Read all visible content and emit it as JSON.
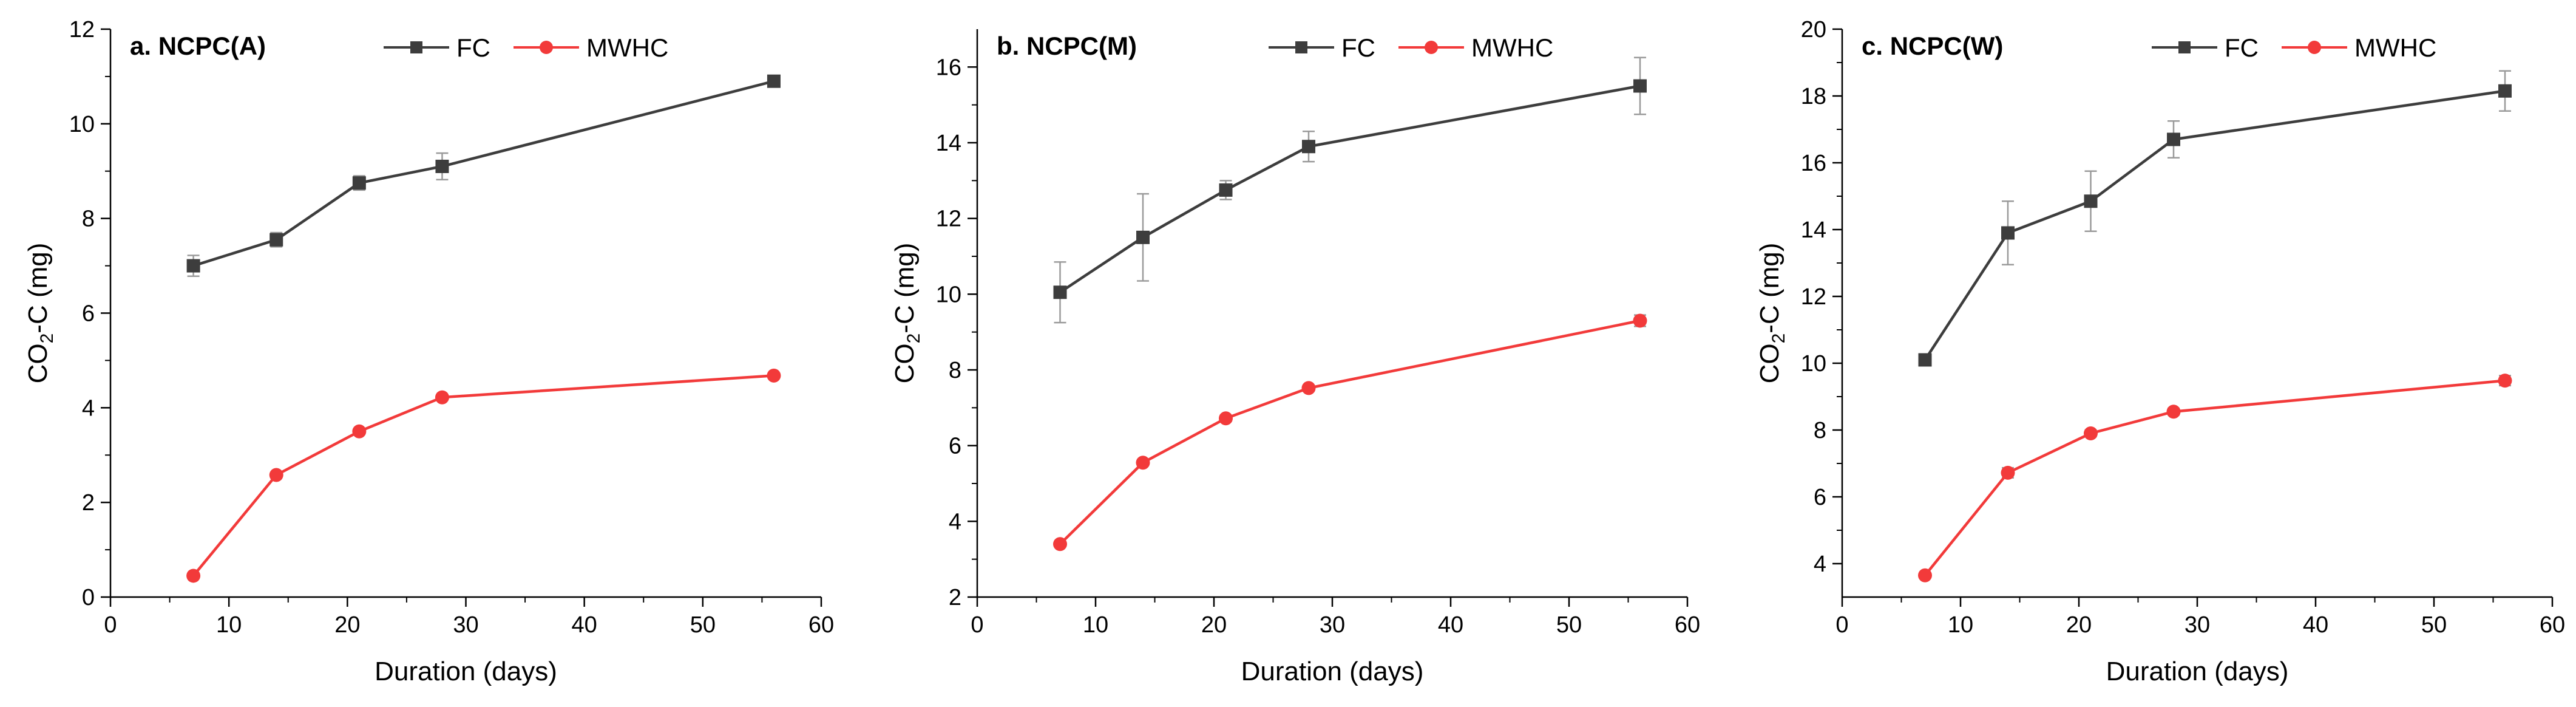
{
  "chart_data": [
    {
      "type": "line",
      "title": "a. NCPC(A)",
      "xlabel": "Duration (days)",
      "ylabel": {
        "base": "CO",
        "sub": "2",
        "rest": "-C (mg)"
      },
      "xlim": [
        0,
        60
      ],
      "ylim": [
        0,
        12
      ],
      "xticks": [
        0,
        10,
        20,
        30,
        40,
        50,
        60
      ],
      "yticks": [
        0,
        2,
        4,
        6,
        8,
        10,
        12
      ],
      "legend": "top-center",
      "grid": false,
      "series": [
        {
          "name": "FC",
          "color": "#3d3d3d",
          "marker": "square",
          "x": [
            7,
            14,
            21,
            28,
            56
          ],
          "y": [
            7.0,
            7.55,
            8.75,
            9.1,
            10.9
          ],
          "err": [
            0.22,
            0.15,
            0.15,
            0.28,
            0.12
          ]
        },
        {
          "name": "MWHC",
          "color": "#f23a3a",
          "marker": "circle",
          "x": [
            7,
            14,
            21,
            28,
            56
          ],
          "y": [
            0.45,
            2.58,
            3.5,
            4.22,
            4.68
          ],
          "err": [
            0,
            0.05,
            0.05,
            0.05,
            0.04
          ]
        }
      ]
    },
    {
      "type": "line",
      "title": "b. NCPC(M)",
      "xlabel": "Duration (days)",
      "ylabel": {
        "base": "CO",
        "sub": "2",
        "rest": "-C (mg)"
      },
      "xlim": [
        0,
        60
      ],
      "ylim": [
        2,
        17
      ],
      "xticks": [
        0,
        10,
        20,
        30,
        40,
        50,
        60
      ],
      "yticks": [
        2,
        4,
        6,
        8,
        10,
        12,
        14,
        16
      ],
      "legend": "top-center",
      "grid": false,
      "series": [
        {
          "name": "FC",
          "color": "#3d3d3d",
          "marker": "square",
          "x": [
            7,
            14,
            21,
            28,
            56
          ],
          "y": [
            10.05,
            11.5,
            12.75,
            13.9,
            15.5
          ],
          "err": [
            0.8,
            1.15,
            0.25,
            0.4,
            0.75
          ]
        },
        {
          "name": "MWHC",
          "color": "#f23a3a",
          "marker": "circle",
          "x": [
            7,
            14,
            21,
            28,
            56
          ],
          "y": [
            3.4,
            5.55,
            6.72,
            7.52,
            9.3
          ],
          "err": [
            0,
            0.08,
            0.08,
            0.05,
            0.15
          ]
        }
      ]
    },
    {
      "type": "line",
      "title": "c. NCPC(W)",
      "xlabel": "Duration (days)",
      "ylabel": {
        "base": "CO",
        "sub": "2",
        "rest": "-C (mg)"
      },
      "xlim": [
        0,
        60
      ],
      "ylim": [
        3,
        20
      ],
      "xticks": [
        0,
        10,
        20,
        30,
        40,
        50,
        60
      ],
      "yticks": [
        4,
        6,
        8,
        10,
        12,
        14,
        16,
        18,
        20
      ],
      "legend": "top-center",
      "grid": false,
      "series": [
        {
          "name": "FC",
          "color": "#3d3d3d",
          "marker": "square",
          "x": [
            7,
            14,
            21,
            28,
            56
          ],
          "y": [
            10.1,
            13.9,
            14.85,
            16.7,
            18.15
          ],
          "err": [
            0.1,
            0.95,
            0.9,
            0.55,
            0.6
          ]
        },
        {
          "name": "MWHC",
          "color": "#f23a3a",
          "marker": "circle",
          "x": [
            7,
            14,
            21,
            28,
            56
          ],
          "y": [
            3.65,
            6.72,
            7.9,
            8.55,
            9.48
          ],
          "err": [
            0.05,
            0.15,
            0.1,
            0.1,
            0.15
          ]
        }
      ]
    }
  ]
}
